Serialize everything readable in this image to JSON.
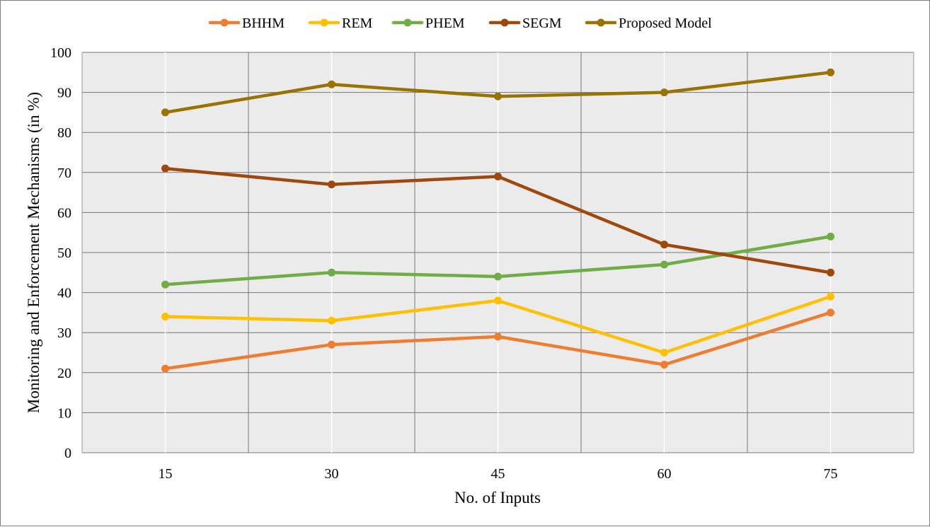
{
  "chart_data": {
    "type": "line",
    "title": "",
    "xlabel": "No. of Inputs",
    "ylabel": "Monitoring and Enforcement Mechanisms (in %)",
    "categories": [
      "15",
      "30",
      "45",
      "60",
      "75"
    ],
    "ylim": [
      0,
      100
    ],
    "yticks": [
      0,
      10,
      20,
      30,
      40,
      50,
      60,
      70,
      80,
      90,
      100
    ],
    "grid": true,
    "legend_position": "top",
    "plot_background": "#ebebeb",
    "series": [
      {
        "name": "BHHM",
        "color": "#ed7d31",
        "values": [
          21,
          27,
          29,
          22,
          35
        ]
      },
      {
        "name": "REM",
        "color": "#ffc000",
        "values": [
          34,
          33,
          38,
          25,
          39
        ]
      },
      {
        "name": "PHEM",
        "color": "#70ad47",
        "values": [
          42,
          45,
          44,
          47,
          54
        ]
      },
      {
        "name": "SEGM",
        "color": "#9e480e",
        "values": [
          71,
          67,
          69,
          52,
          45
        ]
      },
      {
        "name": "Proposed Model",
        "color": "#997300",
        "values": [
          85,
          92,
          89,
          90,
          95
        ]
      }
    ]
  }
}
